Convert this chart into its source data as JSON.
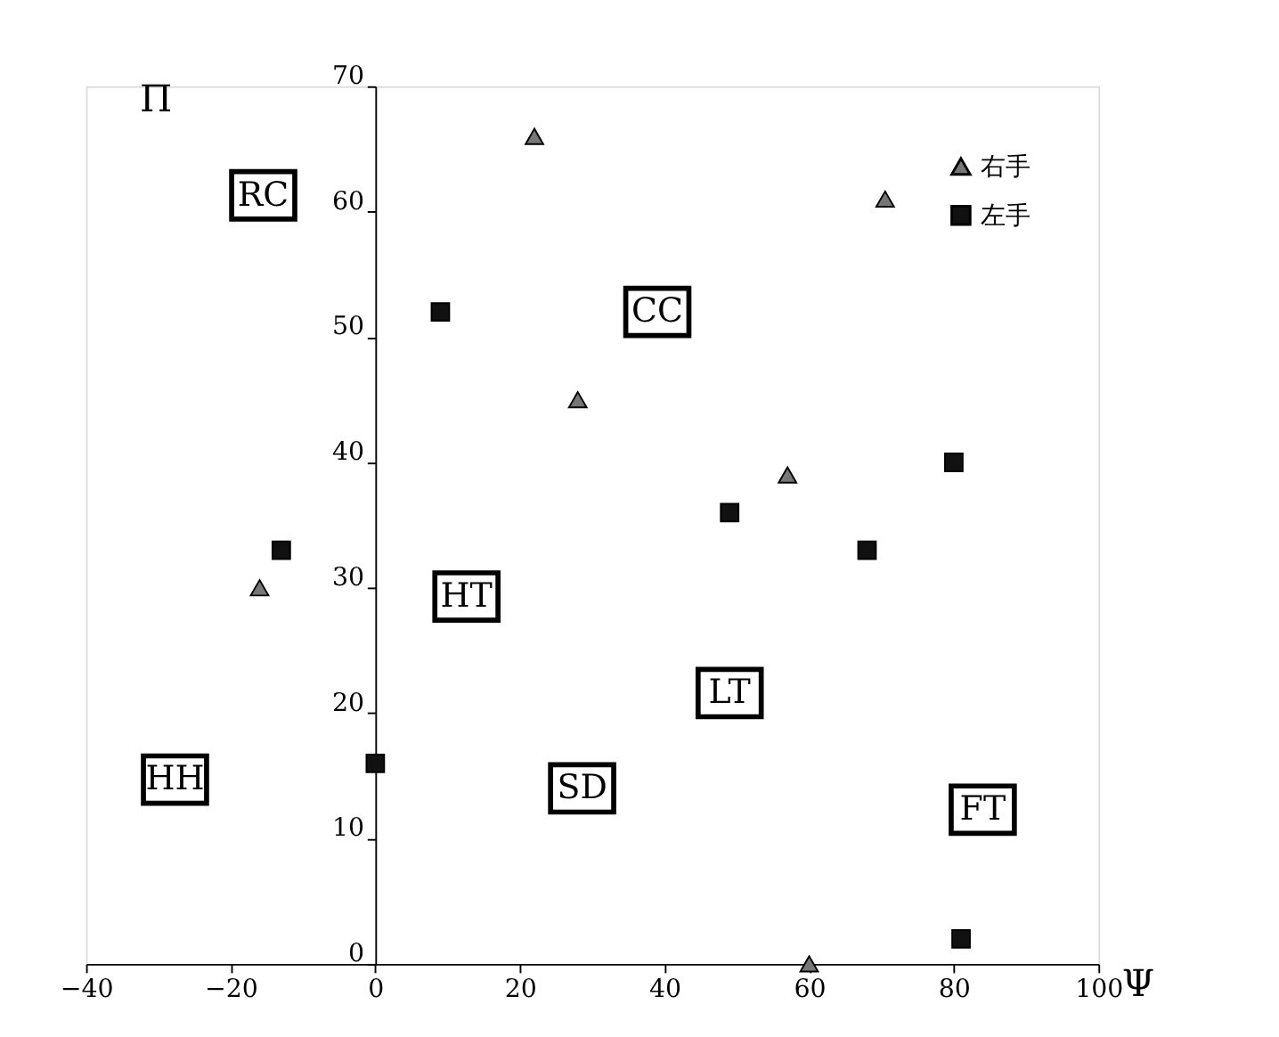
{
  "chart_data": {
    "type": "scatter",
    "xlabel": "Ψ",
    "ylabel": "Π",
    "xlim": [
      -40,
      100
    ],
    "ylim": [
      0,
      70
    ],
    "xticks": [
      -40,
      -20,
      0,
      20,
      40,
      60,
      80,
      100
    ],
    "yticks": [
      0,
      10,
      20,
      30,
      40,
      50,
      60,
      70
    ],
    "grid": false,
    "legend": "top right",
    "series": [
      {
        "name": "右手",
        "color": "#777777",
        "marker": "triangle",
        "x": [
          28,
          22,
          70.5,
          57,
          60,
          -16
        ],
        "values": [
          45,
          66,
          61,
          39,
          0,
          30
        ]
      },
      {
        "name": "左手",
        "color": "#111111",
        "marker": "square",
        "x": [
          9,
          80,
          49,
          68,
          -13,
          0,
          81
        ],
        "values": [
          52,
          40,
          36,
          33,
          33,
          16,
          2
        ]
      }
    ],
    "annotations": [
      {
        "text": "RC",
        "x": -15.5,
        "y": 61.3
      },
      {
        "text": "CC",
        "x": 39,
        "y": 52
      },
      {
        "text": "HT",
        "x": 12.6,
        "y": 29.3
      },
      {
        "text": "LT",
        "x": 49,
        "y": 21.6
      },
      {
        "text": "HH",
        "x": -27.7,
        "y": 14.7
      },
      {
        "text": "SD",
        "x": 28.6,
        "y": 14
      },
      {
        "text": "FT",
        "x": 84,
        "y": 12.3
      }
    ]
  }
}
